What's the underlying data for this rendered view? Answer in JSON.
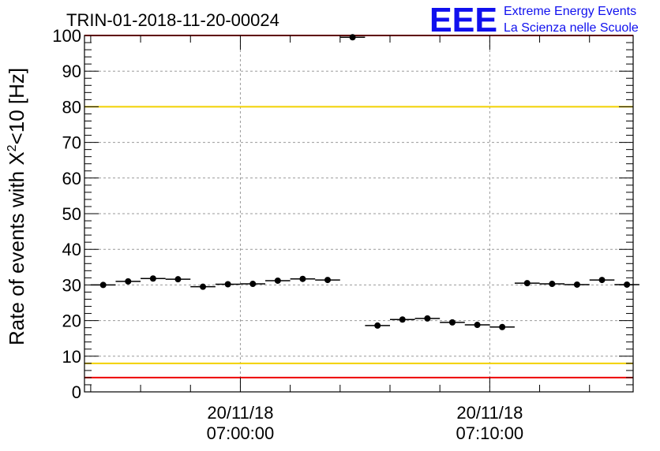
{
  "chart_data": {
    "type": "scatter",
    "title": "TRIN-01-2018-11-20-00024",
    "ylabel_main": "Rate of events with X",
    "ylabel_sup": "2",
    "ylabel_tail": "<10 [Hz]",
    "xlabel": "",
    "ylim": [
      0,
      100
    ],
    "yticks": [
      0,
      10,
      20,
      30,
      40,
      50,
      60,
      70,
      80,
      90,
      100
    ],
    "xlim_minutes": [
      -6.25,
      15.75
    ],
    "xticks": [
      {
        "minutes": 0,
        "date": "20/11/18",
        "time": "07:00:00"
      },
      {
        "minutes": 10,
        "date": "20/11/18",
        "time": "07:10:00"
      }
    ],
    "grid": true,
    "series": [
      {
        "x_minutes": [
          -5.5,
          -4.5,
          -3.5,
          -2.5,
          -1.5,
          -0.5,
          0.5,
          1.5,
          2.5,
          3.5,
          4.5,
          5.5,
          6.5,
          7.5,
          8.5,
          9.5,
          10.5,
          11.5,
          12.5,
          13.5,
          14.5,
          15.5
        ],
        "y": [
          30.0,
          31.0,
          31.8,
          31.6,
          29.5,
          30.2,
          30.3,
          31.2,
          31.7,
          31.4,
          99.5,
          18.6,
          20.3,
          20.6,
          19.5,
          18.8,
          18.2,
          30.5,
          30.3,
          30.1,
          31.4,
          30.1
        ],
        "x_err_minutes": 0.5
      }
    ],
    "reference_lines": [
      {
        "y": 100,
        "color": "#ee0000"
      },
      {
        "y": 80,
        "color": "#f2d100"
      },
      {
        "y": 8,
        "color": "#f2d100"
      },
      {
        "y": 4,
        "color": "#ee0000"
      }
    ]
  },
  "logo": {
    "mark": "EEE",
    "line1": "Extreme Energy Events",
    "line2": "La Scienza nelle Scuole",
    "color": "#1010ee"
  }
}
